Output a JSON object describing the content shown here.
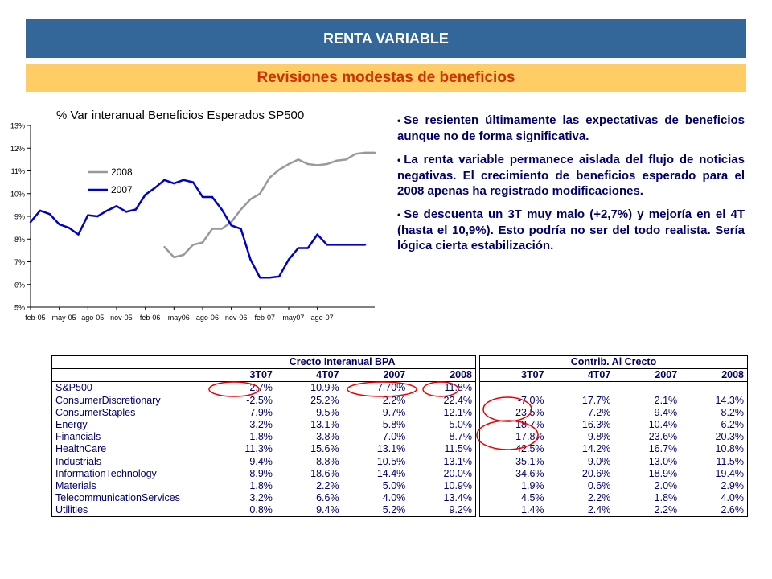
{
  "header": {
    "title": "RENTA VARIABLE",
    "subtitle": "Revisiones modestas de beneficios"
  },
  "chart_data": {
    "type": "line",
    "title": "% Var interanual Beneficios Esperados SP500",
    "x_tick_labels": [
      "feb-05",
      "may-05",
      "ago-05",
      "nov-05",
      "feb-06",
      "may06",
      "ago-06",
      "nov-06",
      "feb-07",
      "may07",
      "ago-07"
    ],
    "y_tick_labels": [
      "5%",
      "6%",
      "7%",
      "8%",
      "9%",
      "10%",
      "11%",
      "12%",
      "13%"
    ],
    "ylim": [
      5,
      13
    ],
    "x_range": [
      0,
      36
    ],
    "legend_placement": "upper-left",
    "series": [
      {
        "name": "2008",
        "color": "#999999",
        "x": [
          14,
          15,
          16,
          17,
          18,
          19,
          20,
          21,
          22,
          23,
          24,
          25,
          26,
          27,
          28,
          29,
          30,
          31,
          32,
          33,
          34,
          35,
          36
        ],
        "values": [
          7.65,
          7.2,
          7.3,
          7.75,
          7.85,
          8.45,
          8.45,
          8.75,
          9.3,
          9.75,
          10.0,
          10.7,
          11.05,
          11.3,
          11.5,
          11.3,
          11.25,
          11.3,
          11.45,
          11.5,
          11.75,
          11.8,
          11.8
        ]
      },
      {
        "name": "2007",
        "color": "#0000cc",
        "x": [
          0,
          1,
          2,
          3,
          4,
          5,
          6,
          7,
          8,
          9,
          10,
          11,
          12,
          13,
          14,
          15,
          16,
          17,
          18,
          19,
          20,
          21,
          22,
          23,
          24,
          25,
          26,
          27,
          28,
          29,
          30,
          31,
          32,
          33,
          34,
          35
        ],
        "values": [
          8.75,
          9.25,
          9.1,
          8.65,
          8.5,
          8.2,
          9.05,
          9.0,
          9.25,
          9.45,
          9.2,
          9.3,
          9.95,
          10.25,
          10.6,
          10.45,
          10.6,
          10.5,
          9.85,
          9.85,
          9.3,
          8.6,
          8.45,
          7.1,
          6.3,
          6.3,
          6.35,
          7.1,
          7.6,
          7.6,
          8.2,
          7.75,
          7.75,
          7.75,
          7.75,
          7.75
        ]
      }
    ]
  },
  "bullets": [
    "Se resienten últimamente las expectativas de beneficios aunque no de forma significativa.",
    "La renta variable permanece aislada del flujo de noticias negativas. El crecimiento de beneficios esperado para el 2008 apenas ha registrado modificaciones.",
    "Se descuenta un 3T muy malo (+2,7%) y mejoría en el 4T (hasta el 10,9%). Esto podría no ser del todo realista. Sería lógica cierta estabilización."
  ],
  "tables": {
    "left": {
      "group_header": "Crecto Interanual BPA",
      "columns": [
        "3T07",
        "4T07",
        "2007",
        "2008"
      ],
      "rows": [
        {
          "name": "S&P500",
          "values": [
            "2.7%",
            "10.9%",
            "7.70%",
            "11.8%"
          ]
        },
        {
          "name": "ConsumerDiscretionary",
          "values": [
            "-2.5%",
            "25.2%",
            "2.2%",
            "22.4%"
          ]
        },
        {
          "name": "ConsumerStaples",
          "values": [
            "7.9%",
            "9.5%",
            "9.7%",
            "12.1%"
          ]
        },
        {
          "name": "Energy",
          "values": [
            "-3.2%",
            "13.1%",
            "5.8%",
            "5.0%"
          ]
        },
        {
          "name": "Financials",
          "values": [
            "-1.8%",
            "3.8%",
            "7.0%",
            "8.7%"
          ]
        },
        {
          "name": "HealthCare",
          "values": [
            "11.3%",
            "15.6%",
            "13.1%",
            "11.5%"
          ]
        },
        {
          "name": "Industrials",
          "values": [
            "9.4%",
            "8.8%",
            "10.5%",
            "13.1%"
          ]
        },
        {
          "name": "InformationTechnology",
          "values": [
            "8.9%",
            "18.6%",
            "14.4%",
            "20.0%"
          ]
        },
        {
          "name": "Materials",
          "values": [
            "1.8%",
            "2.2%",
            "5.0%",
            "10.9%"
          ]
        },
        {
          "name": "TelecommunicationServices",
          "values": [
            "3.2%",
            "6.6%",
            "4.0%",
            "13.4%"
          ]
        },
        {
          "name": "Utilities",
          "values": [
            "0.8%",
            "9.4%",
            "5.2%",
            "9.2%"
          ]
        }
      ]
    },
    "right": {
      "group_header": "Contrib. Al Crecto",
      "columns": [
        "3T07",
        "4T07",
        "2007",
        "2008"
      ],
      "rows": [
        [
          "",
          "",
          "",
          ""
        ],
        [
          "-7.0%",
          "17.7%",
          "2.1%",
          "14.3%"
        ],
        [
          "23.5%",
          "7.2%",
          "9.4%",
          "8.2%"
        ],
        [
          "-18.7%",
          "16.3%",
          "10.4%",
          "6.2%"
        ],
        [
          "-17.8%",
          "9.8%",
          "23.6%",
          "20.3%"
        ],
        [
          "42.5%",
          "14.2%",
          "16.7%",
          "10.8%"
        ],
        [
          "35.1%",
          "9.0%",
          "13.0%",
          "11.5%"
        ],
        [
          "34.6%",
          "20.6%",
          "18.9%",
          "19.4%"
        ],
        [
          "1.9%",
          "0.6%",
          "2.0%",
          "2.9%"
        ],
        [
          "4.5%",
          "2.2%",
          "1.8%",
          "4.0%"
        ],
        [
          "1.4%",
          "2.4%",
          "2.2%",
          "2.6%"
        ]
      ]
    }
  },
  "highlight_color": "#ee0000"
}
